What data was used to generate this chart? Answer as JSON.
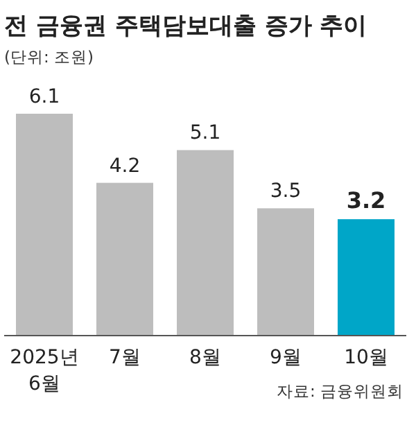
{
  "chart_data": {
    "type": "bar",
    "title": "전 금융권 주택담보대출 증가 추이",
    "subtitle": "(단위: 조원)",
    "categories": [
      "2025년\n6월",
      "7월",
      "8월",
      "9월",
      "10월"
    ],
    "values": [
      6.1,
      4.2,
      5.1,
      3.5,
      3.2
    ],
    "colors": [
      "#bdbdbd",
      "#bdbdbd",
      "#bdbdbd",
      "#bdbdbd",
      "#00a6c8"
    ],
    "data_labels": true,
    "annotations": [
      "자료: 금융위원회"
    ]
  }
}
